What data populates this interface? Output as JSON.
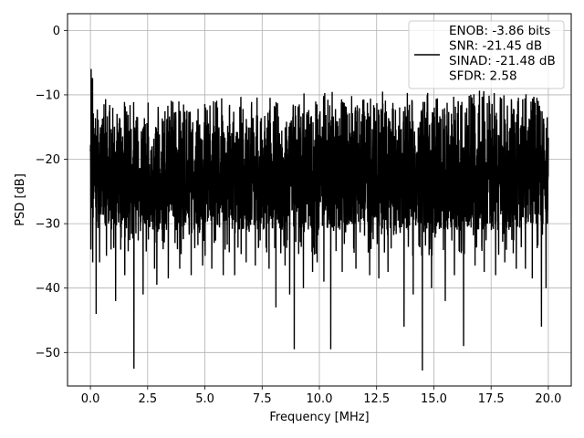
{
  "chart_data": {
    "type": "line",
    "title": "",
    "xlabel": "Frequency [MHz]",
    "ylabel": "PSD [dB]",
    "xlim": [
      -1.0,
      21.0
    ],
    "ylim": [
      -55.2,
      2.6
    ],
    "xticks": [
      0.0,
      2.5,
      5.0,
      7.5,
      10.0,
      12.5,
      15.0,
      17.5,
      20.0
    ],
    "xtick_labels": [
      "0.0",
      "2.5",
      "5.0",
      "7.5",
      "10.0",
      "12.5",
      "15.0",
      "17.5",
      "20.0"
    ],
    "yticks": [
      0,
      -10,
      -20,
      -30,
      -40,
      -50
    ],
    "ytick_labels": [
      "0",
      "−10",
      "−20",
      "−30",
      "−40",
      "−50"
    ],
    "grid": true,
    "legend_position": "top-right",
    "legend": [
      "ENOB: -3.86 bits",
      "SNR: -21.45 dB",
      "SINAD: -21.48 dB",
      "SFDR: 2.58"
    ],
    "series": [
      {
        "color": "#000000",
        "band_upper": [
          [
            0.0,
            0
          ],
          [
            0.05,
            -3
          ],
          [
            0.15,
            -9
          ],
          [
            0.5,
            -10.5
          ],
          [
            1.5,
            -11
          ],
          [
            3.0,
            -11
          ],
          [
            5.0,
            -10.5
          ],
          [
            7.5,
            -10
          ],
          [
            10.0,
            -9.5
          ],
          [
            12.5,
            -9.5
          ],
          [
            15.0,
            -9.3
          ],
          [
            17.5,
            -9.3
          ],
          [
            20.0,
            -9.5
          ]
        ],
        "band_lower": [
          [
            0.0,
            -27
          ],
          [
            0.5,
            -30
          ],
          [
            2.5,
            -31
          ],
          [
            5.0,
            -31
          ],
          [
            7.5,
            -31
          ],
          [
            10.0,
            -31
          ],
          [
            12.5,
            -31
          ],
          [
            15.0,
            -31
          ],
          [
            17.5,
            -31
          ],
          [
            20.0,
            -30
          ]
        ],
        "spikes": [
          [
            0.02,
            -34
          ],
          [
            0.1,
            -36
          ],
          [
            0.25,
            -44
          ],
          [
            0.4,
            -36
          ],
          [
            0.7,
            -35
          ],
          [
            0.9,
            -34
          ],
          [
            1.1,
            -42
          ],
          [
            1.5,
            -38
          ],
          [
            1.9,
            -52.5
          ],
          [
            2.3,
            -41
          ],
          [
            2.8,
            -37
          ],
          [
            2.9,
            -39.5
          ],
          [
            3.4,
            -38.5
          ],
          [
            3.9,
            -37
          ],
          [
            4.4,
            -38
          ],
          [
            4.9,
            -36.5
          ],
          [
            5.3,
            -37
          ],
          [
            5.8,
            -38
          ],
          [
            6.3,
            -38
          ],
          [
            6.8,
            -36
          ],
          [
            7.2,
            -36.5
          ],
          [
            7.8,
            -37
          ],
          [
            8.1,
            -43
          ],
          [
            8.5,
            -36.5
          ],
          [
            8.7,
            -41
          ],
          [
            8.9,
            -49.5
          ],
          [
            9.3,
            -40
          ],
          [
            9.7,
            -37.5
          ],
          [
            9.9,
            -36
          ],
          [
            10.2,
            -39
          ],
          [
            10.5,
            -49.5
          ],
          [
            11.0,
            -37.5
          ],
          [
            11.6,
            -37
          ],
          [
            12.2,
            -38
          ],
          [
            12.6,
            -38.5
          ],
          [
            13.0,
            -37.5
          ],
          [
            13.7,
            -46
          ],
          [
            14.1,
            -41
          ],
          [
            14.5,
            -52.8
          ],
          [
            14.9,
            -40
          ],
          [
            15.5,
            -42
          ],
          [
            15.9,
            -38
          ],
          [
            16.3,
            -49
          ],
          [
            16.8,
            -36.5
          ],
          [
            17.2,
            -37.5
          ],
          [
            17.7,
            -38
          ],
          [
            18.1,
            -36
          ],
          [
            18.6,
            -37
          ],
          [
            19.0,
            -37
          ],
          [
            19.3,
            -38.5
          ],
          [
            19.7,
            -46
          ],
          [
            19.9,
            -40
          ]
        ]
      }
    ]
  }
}
